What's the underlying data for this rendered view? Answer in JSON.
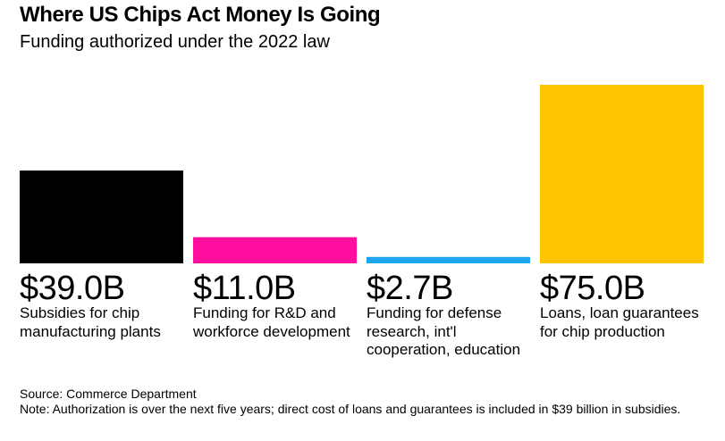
{
  "chart_data": {
    "type": "bar",
    "title": "Where US Chips Act Money Is Going",
    "subtitle": "Funding authorized under the 2022 law",
    "unit": "billion USD",
    "categories": [
      "Subsidies for chip manufacturing plants",
      "Funding for R&D and workforce development",
      "Funding for defense research, int'l cooperation, education",
      "Loans, loan guarantees for chip production"
    ],
    "values": [
      39.0,
      11.0,
      2.7,
      75.0
    ],
    "value_labels": [
      "$39.0B",
      "$11.0B",
      "$2.7B",
      "$75.0B"
    ],
    "colors": [
      "#000000",
      "#ff0d9c",
      "#1ba6ef",
      "#ffc300"
    ],
    "xlabel": "",
    "ylabel": "",
    "ylim": [
      0,
      75
    ],
    "grid": false,
    "legend": "none"
  },
  "source": "Source: Commerce Department",
  "note": "Note: Authorization is over the next five years; direct cost of loans and guarantees is included in $39 billion in subsidies."
}
